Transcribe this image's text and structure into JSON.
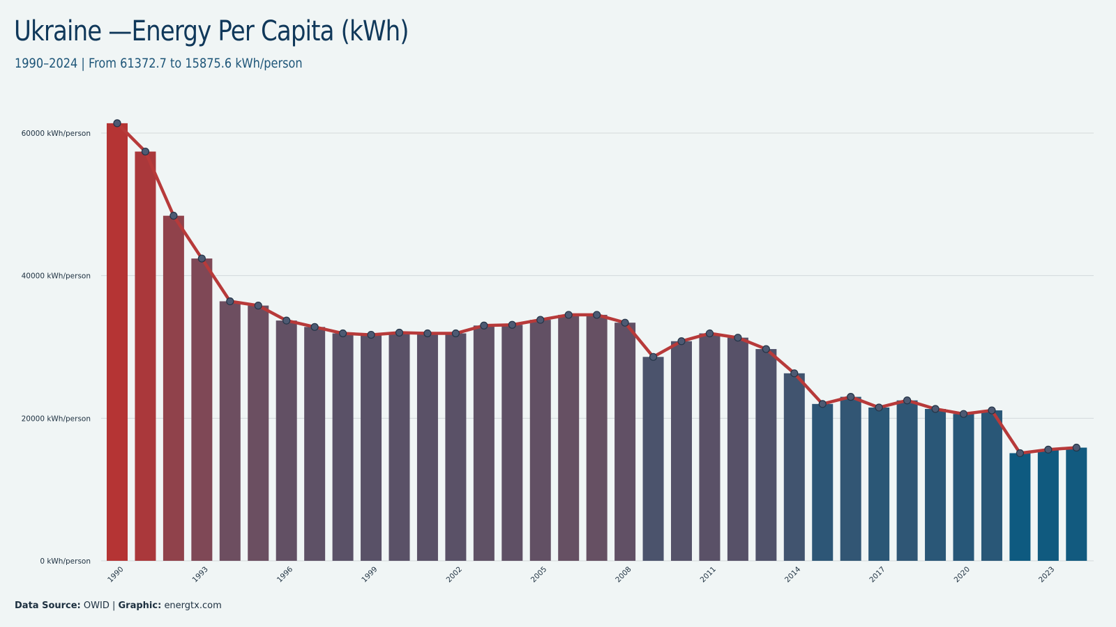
{
  "title": "Ukraine —Energy Per Capita (kWh)",
  "subtitle": "1990–2024 | From 61372.7  to 15875.6  kWh/person",
  "footer": {
    "source_label": "Data Source:",
    "source_value": "OWID",
    "separator": "|",
    "graphic_label": "Graphic:",
    "graphic_value": "energtx.com"
  },
  "colors": {
    "background": "#f0f5f5",
    "line": "#b73a3a",
    "bar_start": "#b53434",
    "bar_mid": "#6c4f61",
    "bar_end": "#0e5a80",
    "marker_fill": "#4d5a73",
    "marker_stroke": "#243447",
    "grid": "#d3d9db",
    "title": "#10385a"
  },
  "chart_data": {
    "type": "bar",
    "overlay": "line-with-markers",
    "x": [
      1990,
      1991,
      1992,
      1993,
      1994,
      1995,
      1996,
      1997,
      1998,
      1999,
      2000,
      2001,
      2002,
      2003,
      2004,
      2005,
      2006,
      2007,
      2008,
      2009,
      2010,
      2011,
      2012,
      2013,
      2014,
      2015,
      2016,
      2017,
      2018,
      2019,
      2020,
      2021,
      2022,
      2023,
      2024
    ],
    "values": [
      61372.7,
      57400,
      48400,
      42400,
      36400,
      35800,
      33700,
      32800,
      31900,
      31700,
      32000,
      31900,
      31900,
      33000,
      33100,
      33800,
      34500,
      34500,
      33400,
      28600,
      30800,
      31900,
      31300,
      29700,
      26300,
      22000,
      23000,
      21500,
      22500,
      21300,
      20600,
      21100,
      15100,
      15600,
      15875.6
    ],
    "x_tick_labels": [
      "1990",
      "1993",
      "1996",
      "1999",
      "2002",
      "2005",
      "2008",
      "2011",
      "2014",
      "2017",
      "2020",
      "2023"
    ],
    "y_ticks": [
      0,
      20000,
      40000,
      60000
    ],
    "y_tick_labels": [
      "0 kWh/person",
      "20000 kWh/person",
      "40000 kWh/person",
      "60000 kWh/person"
    ],
    "ylim": [
      0,
      64000
    ],
    "xlabel": "",
    "ylabel": "",
    "grid": "horizontal",
    "legend": "none"
  }
}
